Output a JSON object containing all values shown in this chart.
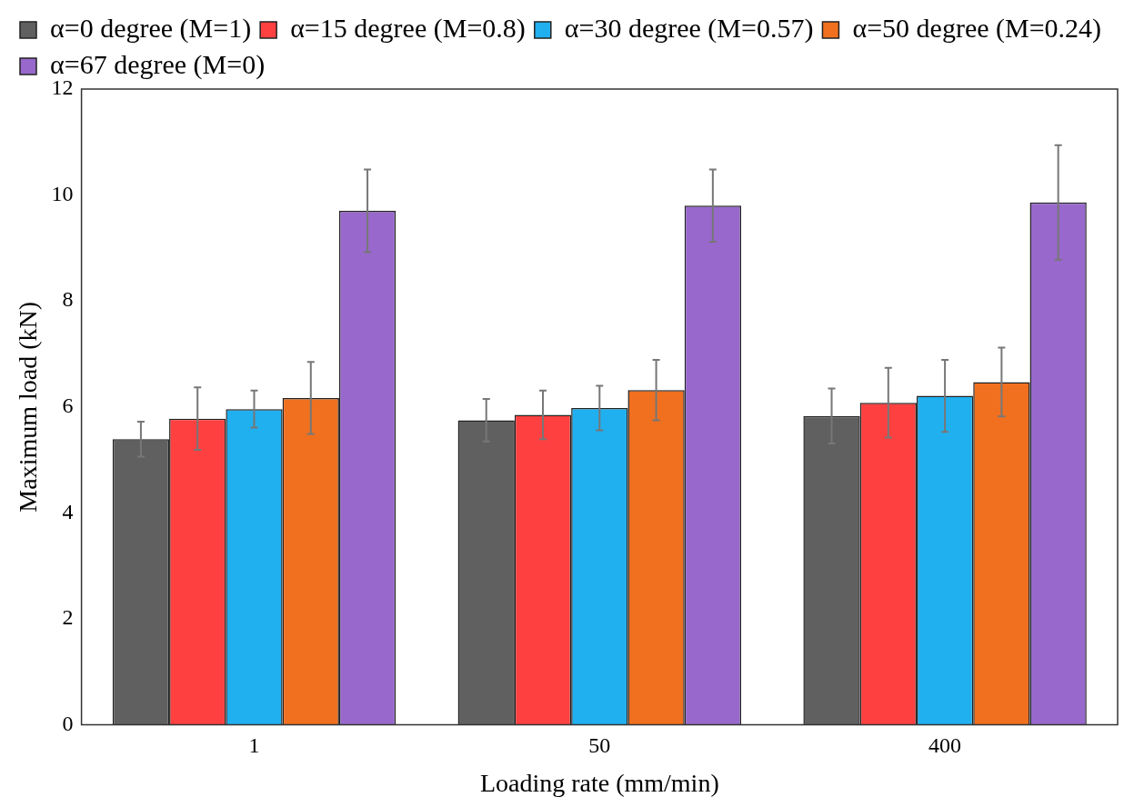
{
  "chart_data": {
    "type": "bar",
    "xlabel": "Loading rate (mm/min)",
    "ylabel": "Maximum load (kN)",
    "categories": [
      "1",
      "50",
      "400"
    ],
    "ylim": [
      0,
      12
    ],
    "yticks": [
      0,
      2,
      4,
      6,
      8,
      10,
      12
    ],
    "grid": false,
    "legend": "top",
    "series": [
      {
        "name": "α=0 degree (M=1)",
        "color": "#606060",
        "values": [
          5.39,
          5.75,
          5.83
        ],
        "errors": [
          0.33,
          0.4,
          0.52
        ]
      },
      {
        "name": "α=15 degree (M=0.8)",
        "color": "#ff4040",
        "values": [
          5.78,
          5.85,
          6.08
        ],
        "errors": [
          0.59,
          0.46,
          0.66
        ]
      },
      {
        "name": "α=30 degree (M=0.57)",
        "color": "#20b0f0",
        "values": [
          5.96,
          5.98,
          6.21
        ],
        "errors": [
          0.35,
          0.42,
          0.68
        ]
      },
      {
        "name": "α=50 degree (M=0.24)",
        "color": "#f07020",
        "values": [
          6.17,
          6.32,
          6.47
        ],
        "errors": [
          0.68,
          0.57,
          0.65
        ]
      },
      {
        "name": "α=67 degree (M=0)",
        "color": "#9868cc",
        "values": [
          9.7,
          9.8,
          9.86
        ],
        "errors": [
          0.78,
          0.68,
          1.08
        ]
      }
    ]
  }
}
